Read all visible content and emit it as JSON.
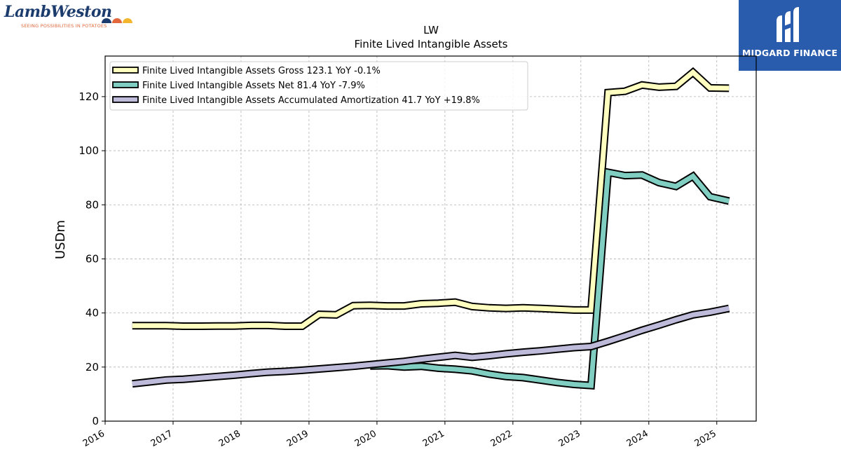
{
  "brand": {
    "company_wordmark": "LambWeston",
    "company_tagline": "SEEING POSSIBILITIES IN POTATOES",
    "publisher_name": "MIDGARD FINANCE",
    "dot_colors": [
      "#1d3c6e",
      "#e2683c",
      "#f4b52e"
    ]
  },
  "chart_data": {
    "type": "line",
    "title": "LW",
    "subtitle": "Finite Lived Intangible Assets",
    "ylabel": "USDm",
    "xlabel": "",
    "ylim": [
      0,
      135
    ],
    "xlim": [
      2016.0,
      2025.58
    ],
    "yticks": [
      0,
      20,
      40,
      60,
      80,
      100,
      120
    ],
    "xticks": [
      "2016",
      "2017",
      "2018",
      "2019",
      "2020",
      "2021",
      "2022",
      "2023",
      "2024",
      "2025"
    ],
    "grid": true,
    "legend_position": "top-left",
    "series": [
      {
        "name": "Finite Lived Intangible Assets Gross",
        "legend_label": "Finite Lived Intangible Assets Gross  123.1 YoY -0.1%",
        "color": "#ffffbf",
        "x": [
          2016.4,
          2016.65,
          2016.9,
          2017.15,
          2017.4,
          2017.65,
          2017.9,
          2018.15,
          2018.4,
          2018.65,
          2018.9,
          2019.15,
          2019.4,
          2019.65,
          2019.9,
          2020.15,
          2020.4,
          2020.65,
          2020.9,
          2021.15,
          2021.4,
          2021.65,
          2021.9,
          2022.15,
          2022.4,
          2022.65,
          2022.9,
          2023.15,
          2023.4,
          2023.65,
          2023.9,
          2024.15,
          2024.4,
          2024.65,
          2024.9,
          2025.18
        ],
        "y": [
          35.3,
          35.3,
          35.3,
          35.1,
          35.1,
          35.2,
          35.2,
          35.4,
          35.4,
          35.1,
          35.1,
          39.5,
          39.3,
          42.7,
          42.8,
          42.6,
          42.6,
          43.4,
          43.6,
          44.0,
          42.4,
          41.9,
          41.7,
          41.9,
          41.7,
          41.4,
          41.1,
          41.1,
          121.5,
          122.0,
          124.3,
          123.5,
          123.8,
          129.0,
          123.2,
          123.1
        ]
      },
      {
        "name": "Finite Lived Intangible Assets Net",
        "legend_label": "Finite Lived Intangible Assets Net  81.4 YoY -7.9%",
        "color": "#80cdc1",
        "x": [
          2019.9,
          2020.15,
          2020.4,
          2020.65,
          2020.9,
          2021.15,
          2021.4,
          2021.65,
          2021.9,
          2022.15,
          2022.4,
          2022.65,
          2022.9,
          2023.15,
          2023.4,
          2023.65,
          2023.9,
          2024.15,
          2024.4,
          2024.65,
          2024.9,
          2025.18
        ],
        "y": [
          20.4,
          20.5,
          20.0,
          20.3,
          19.6,
          19.2,
          18.6,
          17.4,
          16.5,
          16.1,
          15.2,
          14.3,
          13.6,
          13.2,
          92.0,
          90.8,
          91.0,
          88.2,
          86.8,
          90.6,
          83.0,
          81.4
        ]
      },
      {
        "name": "Finite Lived Intangible Assets Accumulated Amortization",
        "legend_label": "Finite Lived Intangible Assets Accumulated Amortization  41.7 YoY +19.8%",
        "color": "#bebada",
        "x": [
          2016.4,
          2016.65,
          2016.9,
          2017.15,
          2017.4,
          2017.65,
          2017.9,
          2018.15,
          2018.4,
          2018.65,
          2018.9,
          2019.15,
          2019.4,
          2019.65,
          2019.9,
          2020.15,
          2020.4,
          2020.65,
          2020.9,
          2021.15,
          2021.4,
          2021.65,
          2021.9,
          2022.15,
          2022.4,
          2022.65,
          2022.9,
          2023.15,
          2023.4,
          2023.65,
          2023.9,
          2024.15,
          2024.4,
          2024.65,
          2024.9,
          2025.18
        ],
        "y": [
          13.8,
          14.5,
          15.2,
          15.5,
          16.0,
          16.5,
          17.0,
          17.6,
          18.1,
          18.4,
          18.8,
          19.3,
          19.8,
          20.3,
          20.9,
          21.5,
          22.1,
          22.9,
          23.6,
          24.3,
          23.6,
          24.2,
          24.9,
          25.5,
          26.0,
          26.6,
          27.2,
          27.6,
          29.5,
          31.5,
          33.6,
          35.5,
          37.5,
          39.3,
          40.3,
          41.7
        ]
      }
    ]
  }
}
